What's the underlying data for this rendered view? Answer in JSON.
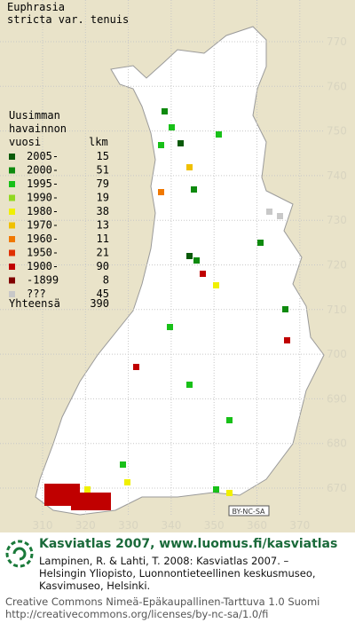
{
  "title": [
    "Euphrasia",
    "stricta var. tenuis"
  ],
  "legend": {
    "heading": [
      "Uusimman",
      "havainnon",
      "vuosi"
    ],
    "count_heading": "lkm",
    "items": [
      {
        "label": "2005-",
        "count": "15",
        "color": "#0a5a0a"
      },
      {
        "label": "2000-",
        "count": "51",
        "color": "#0e8a0e"
      },
      {
        "label": "1995-",
        "count": "79",
        "color": "#18c018"
      },
      {
        "label": "1990-",
        "count": "19",
        "color": "#90d820"
      },
      {
        "label": "1980-",
        "count": "38",
        "color": "#f0f000"
      },
      {
        "label": "1970-",
        "count": "13",
        "color": "#f0c000"
      },
      {
        "label": "1960-",
        "count": "11",
        "color": "#f07800"
      },
      {
        "label": "1950-",
        "count": "21",
        "color": "#e03000"
      },
      {
        "label": "1900-",
        "count": "90",
        "color": "#c00000"
      },
      {
        "label": "-1899",
        "count": "8",
        "color": "#800000"
      },
      {
        "label": "???",
        "count": "45",
        "color": "#c8c8c8"
      }
    ],
    "total": {
      "label": "Yhteensä",
      "count": "390"
    }
  },
  "grid": {
    "y_labels": [
      770,
      760,
      750,
      740,
      730,
      720,
      710,
      700,
      690,
      680,
      670
    ],
    "x_labels": [
      310,
      320,
      330,
      340,
      350,
      360,
      370
    ]
  },
  "license_badge": "BY-NC-SA",
  "footer": {
    "heading": "Kasviatlas 2007, www.luomus.fi/kasviatlas",
    "citation": [
      "Lampinen, R. & Lahti, T. 2008: Kasviatlas 2007. –",
      "Helsingin Yliopisto, Luonnontieteellinen keskusmuseo,",
      "Kasvimuseo, Helsinki."
    ],
    "license": [
      "Creative Commons Nimeä-Epäkaupallinen-Tarttuva 1.0 Suomi",
      "http://creativecommons.org/licenses/by-nc-sa/1.0/fi"
    ]
  }
}
